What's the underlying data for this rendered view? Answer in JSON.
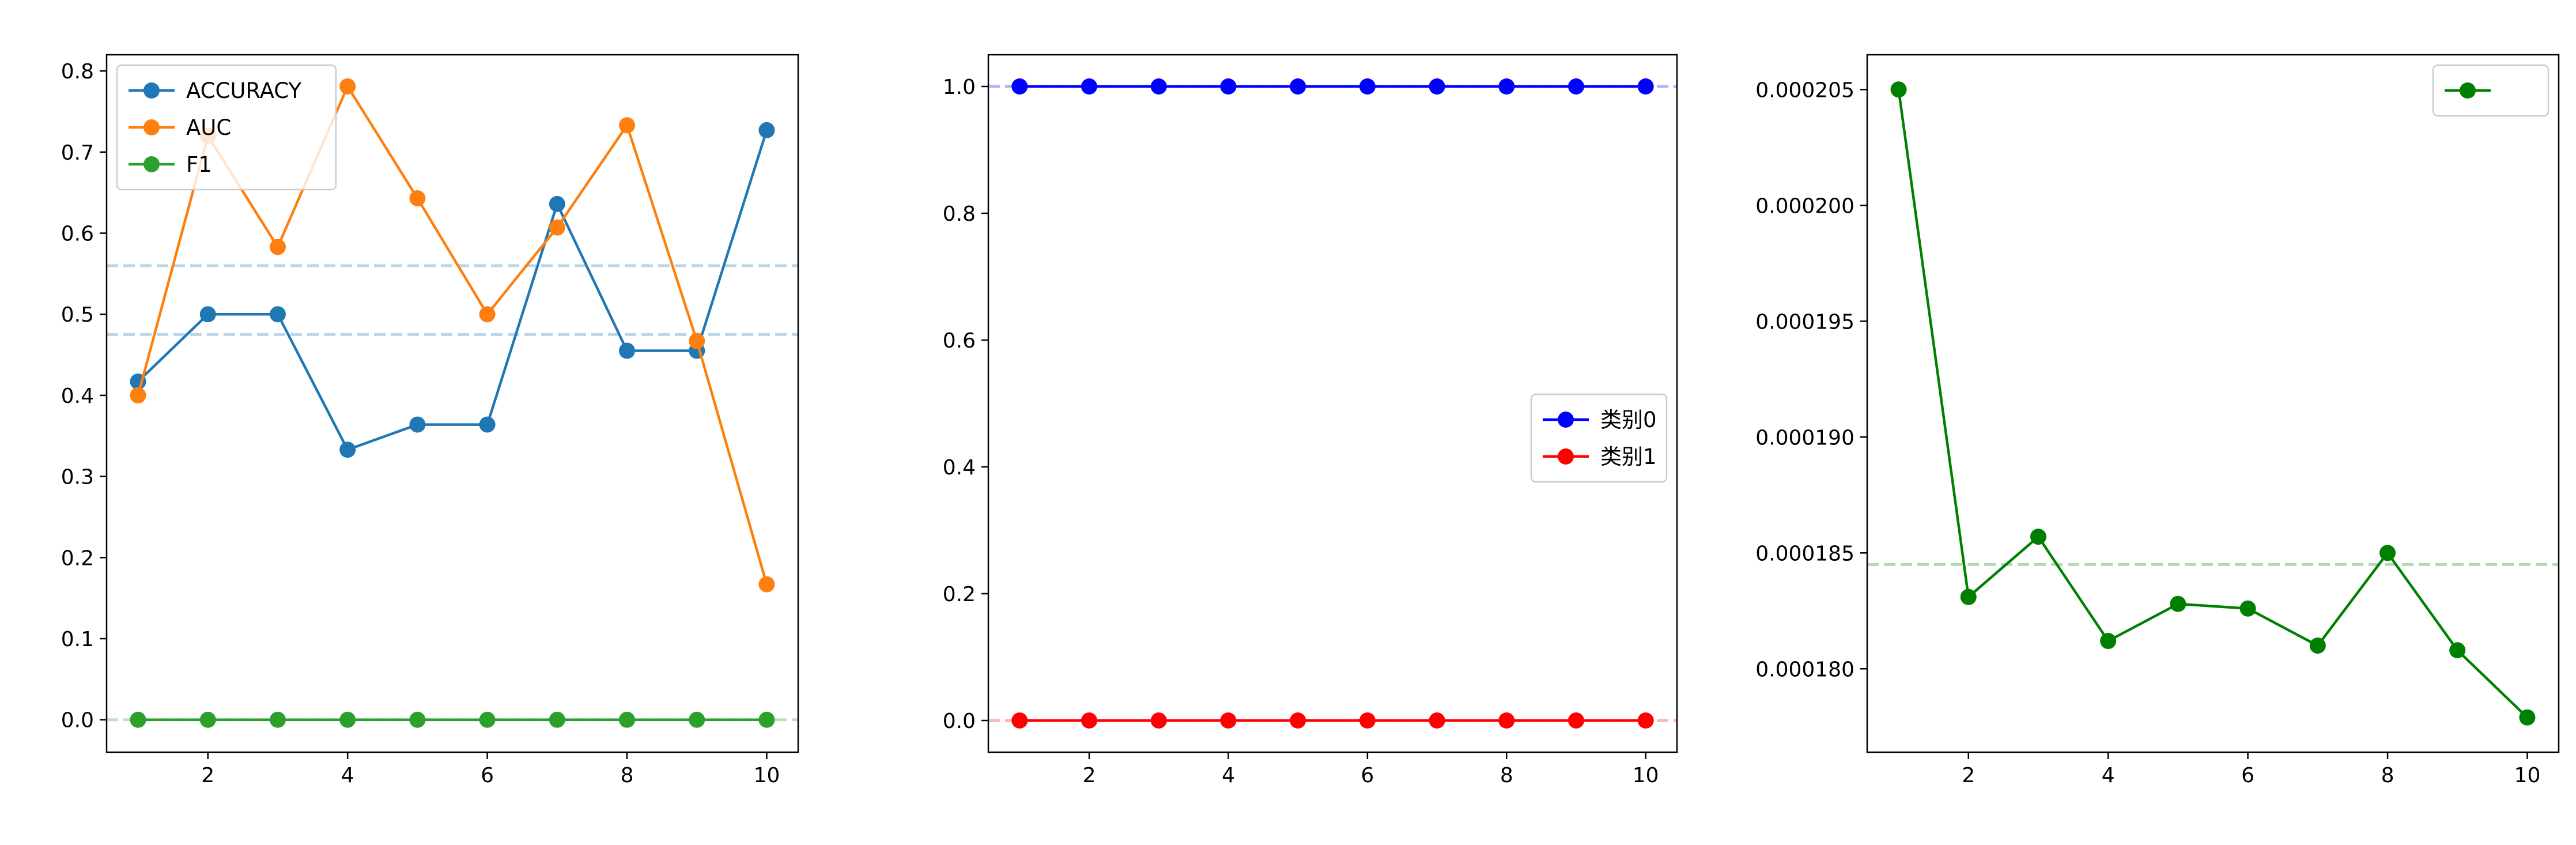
{
  "figure": {
    "background": "#ffffff"
  },
  "chart_data": [
    {
      "type": "line",
      "title": "",
      "xlabel": "",
      "ylabel": "",
      "xlim": [
        0.55,
        10.45
      ],
      "ylim": [
        -0.04,
        0.82
      ],
      "xticks": [
        2,
        4,
        6,
        8,
        10
      ],
      "xtick_labels": [
        "2",
        "4",
        "6",
        "8",
        "10"
      ],
      "yticks": [
        0.0,
        0.1,
        0.2,
        0.3,
        0.4,
        0.5,
        0.6,
        0.7,
        0.8
      ],
      "ytick_labels": [
        "0.0",
        "0.1",
        "0.2",
        "0.3",
        "0.4",
        "0.5",
        "0.6",
        "0.7",
        "0.8"
      ],
      "x": [
        1,
        2,
        3,
        4,
        5,
        6,
        7,
        8,
        9,
        10
      ],
      "series": [
        {
          "name": "ACCURACY",
          "color": "#1f77b4",
          "values": [
            0.417,
            0.5,
            0.5,
            0.333,
            0.364,
            0.364,
            0.636,
            0.455,
            0.455,
            0.727
          ]
        },
        {
          "name": "AUC",
          "color": "#ff7f0e",
          "values": [
            0.4,
            0.72,
            0.583,
            0.781,
            0.643,
            0.5,
            0.607,
            0.733,
            0.467,
            0.167
          ]
        },
        {
          "name": "F1",
          "color": "#2ca02c",
          "values": [
            0,
            0,
            0,
            0,
            0,
            0,
            0,
            0,
            0,
            0
          ]
        }
      ],
      "hlines": [
        {
          "y": 0.475,
          "color": "#1f77b4"
        },
        {
          "y": 0.56,
          "color": "#1f77b4"
        },
        {
          "y": 0.0,
          "color": "#2ca02c"
        }
      ],
      "legend": "upper-left",
      "grid": false
    },
    {
      "type": "line",
      "title": "",
      "xlabel": "",
      "ylabel": "",
      "xlim": [
        0.55,
        10.45
      ],
      "ylim": [
        -0.05,
        1.05
      ],
      "xticks": [
        2,
        4,
        6,
        8,
        10
      ],
      "xtick_labels": [
        "2",
        "4",
        "6",
        "8",
        "10"
      ],
      "yticks": [
        0.0,
        0.2,
        0.4,
        0.6,
        0.8,
        1.0
      ],
      "ytick_labels": [
        "0.0",
        "0.2",
        "0.4",
        "0.6",
        "0.8",
        "1.0"
      ],
      "x": [
        1,
        2,
        3,
        4,
        5,
        6,
        7,
        8,
        9,
        10
      ],
      "series": [
        {
          "name": "类别0",
          "color": "#0000ff",
          "values": [
            1,
            1,
            1,
            1,
            1,
            1,
            1,
            1,
            1,
            1
          ]
        },
        {
          "name": "类别1",
          "color": "#ff0000",
          "values": [
            0,
            0,
            0,
            0,
            0,
            0,
            0,
            0,
            0,
            0
          ]
        }
      ],
      "hlines": [
        {
          "y": 1.0,
          "color": "#0000ff"
        },
        {
          "y": 0.0,
          "color": "#ff0000"
        }
      ],
      "legend": "center-right",
      "grid": false
    },
    {
      "type": "line",
      "title": "",
      "xlabel": "",
      "ylabel": "",
      "xlim": [
        0.55,
        10.45
      ],
      "ylim": [
        0.0001764,
        0.0002065
      ],
      "xticks": [
        2,
        4,
        6,
        8,
        10
      ],
      "xtick_labels": [
        "2",
        "4",
        "6",
        "8",
        "10"
      ],
      "yticks": [
        0.00018,
        0.000185,
        0.00019,
        0.000195,
        0.0002,
        0.000205
      ],
      "ytick_labels": [
        "0.000180",
        "0.000185",
        "0.000190",
        "0.000195",
        "0.000200",
        "0.000205"
      ],
      "x": [
        1,
        2,
        3,
        4,
        5,
        6,
        7,
        8,
        9,
        10
      ],
      "series": [
        {
          "name": "",
          "color": "#008000",
          "values": [
            0.000205,
            0.0001831,
            0.0001857,
            0.0001812,
            0.0001828,
            0.0001826,
            0.000181,
            0.000185,
            0.0001808,
            0.0001779
          ]
        }
      ],
      "hlines": [
        {
          "y": 0.0001845,
          "color": "#008000"
        }
      ],
      "legend": "upper-right",
      "grid": false
    }
  ]
}
